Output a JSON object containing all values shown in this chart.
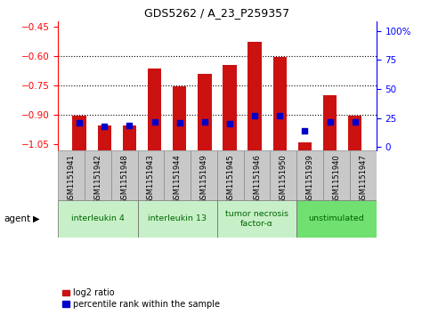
{
  "title": "GDS5262 / A_23_P259357",
  "samples": [
    "GSM1151941",
    "GSM1151942",
    "GSM1151948",
    "GSM1151943",
    "GSM1151944",
    "GSM1151949",
    "GSM1151945",
    "GSM1151946",
    "GSM1151950",
    "GSM1151939",
    "GSM1151940",
    "GSM1151947"
  ],
  "log2_ratio": [
    -0.905,
    -0.955,
    -0.955,
    -0.665,
    -0.755,
    -0.69,
    -0.645,
    -0.525,
    -0.605,
    -1.04,
    -0.8,
    -0.905
  ],
  "percentile_rank": [
    21,
    18,
    19,
    22,
    21,
    22,
    20,
    27,
    27,
    14,
    22,
    22
  ],
  "agents": [
    {
      "label": "interleukin 4",
      "start": 0,
      "end": 3,
      "color": "#c8f0c8"
    },
    {
      "label": "interleukin 13",
      "start": 3,
      "end": 6,
      "color": "#c8f0c8"
    },
    {
      "label": "tumor necrosis\nfactor-α",
      "start": 6,
      "end": 9,
      "color": "#c8f0c8"
    },
    {
      "label": "unstimulated",
      "start": 9,
      "end": 12,
      "color": "#70e070"
    }
  ],
  "ylim_left": [
    -1.08,
    -0.42
  ],
  "yticks_left": [
    -1.05,
    -0.9,
    -0.75,
    -0.6,
    -0.45
  ],
  "ylim_right": [
    -2.625,
    108.375
  ],
  "yticks_right": [
    0,
    25,
    50,
    75,
    100
  ],
  "bar_color": "#cc1111",
  "dot_color": "#0000cc",
  "bar_width": 0.55,
  "background_color": "#ffffff",
  "plot_bg_color": "#ffffff",
  "grid_color": "#000000",
  "agent_label": "agent",
  "legend_log2": "log2 ratio",
  "legend_pct": "percentile rank within the sample",
  "sample_bg_color": "#c8c8c8",
  "sample_border_color": "#888888"
}
